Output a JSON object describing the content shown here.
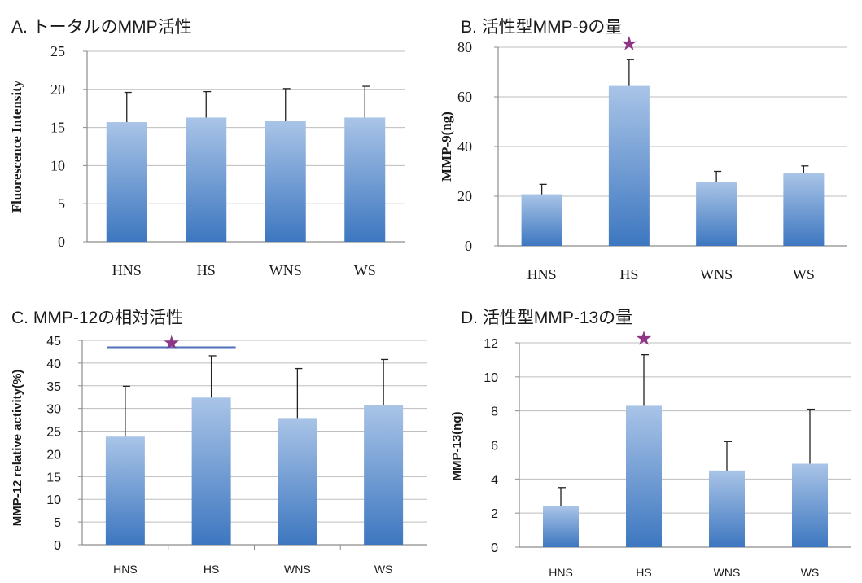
{
  "chart_data": [
    {
      "id": "A",
      "type": "bar",
      "title": "A. トータルのMMP活性",
      "xlabel": "",
      "ylabel": "Fluorescence Intensity",
      "categories": [
        "HNS",
        "HS",
        "WNS",
        "WS"
      ],
      "values": [
        15.7,
        16.3,
        15.9,
        16.3
      ],
      "error_upper": [
        19.6,
        19.7,
        20.1,
        20.4
      ],
      "ylim": [
        0,
        25
      ],
      "yticks": [
        0,
        5,
        10,
        15,
        20,
        25
      ],
      "yticks_labels": [
        "0",
        "5",
        "10",
        "15",
        "20",
        "25"
      ],
      "grid": true,
      "significance": []
    },
    {
      "id": "B",
      "type": "bar",
      "title": "B. 活性型MMP-9の量",
      "xlabel": "",
      "ylabel": "MMP-9(ng)",
      "categories": [
        "HNS",
        "HS",
        "WNS",
        "WS"
      ],
      "values": [
        20.8,
        64.4,
        25.6,
        29.4
      ],
      "error_upper": [
        24.8,
        75.0,
        30.0,
        32.2
      ],
      "ylim": [
        0,
        80
      ],
      "yticks": [
        0,
        20,
        40,
        60,
        80
      ],
      "yticks_labels": [
        "0",
        "20",
        "40",
        "60",
        "80"
      ],
      "grid": true,
      "significance": [
        {
          "symbol": "★",
          "category": "HS"
        }
      ]
    },
    {
      "id": "C",
      "type": "bar",
      "title": "C. MMP-12の相対活性",
      "xlabel": "",
      "ylabel": "MMP-12 relative activity(%)",
      "categories": [
        "HNS",
        "HS",
        "WNS",
        "WS"
      ],
      "values": [
        23.8,
        32.4,
        27.9,
        30.8
      ],
      "error_upper": [
        34.9,
        41.6,
        38.8,
        40.8
      ],
      "ylim": [
        0,
        45
      ],
      "yticks": [
        0,
        5,
        10,
        15,
        20,
        25,
        30,
        35,
        40,
        45
      ],
      "yticks_labels": [
        "0",
        "5",
        "10",
        "15",
        "20",
        "25",
        "30",
        "35",
        "40",
        "45"
      ],
      "grid": true,
      "significance": [
        {
          "symbol": "★",
          "from": "HNS",
          "to": "HS"
        }
      ]
    },
    {
      "id": "D",
      "type": "bar",
      "title": "D. 活性型MMP-13の量",
      "xlabel": "",
      "ylabel": "MMP-13(ng)",
      "categories": [
        "HNS",
        "HS",
        "WNS",
        "WS"
      ],
      "values": [
        2.4,
        8.3,
        4.5,
        4.9
      ],
      "error_upper": [
        3.5,
        11.3,
        6.2,
        8.1
      ],
      "ylim": [
        0,
        12
      ],
      "yticks": [
        0,
        2,
        4,
        6,
        8,
        10,
        12
      ],
      "yticks_labels": [
        "0",
        "2",
        "4",
        "6",
        "8",
        "10",
        "12"
      ],
      "grid": true,
      "significance": [
        {
          "symbol": "★",
          "category": "HS"
        }
      ]
    }
  ],
  "colors": {
    "bar_top": "#a9c4e7",
    "bar_bottom": "#3d77c0",
    "grid": "#bdbdbd",
    "axis": "#8c8c8c",
    "star": "#8e3585",
    "significance_line": "#4d72b8",
    "text": "#1a1a1a"
  }
}
